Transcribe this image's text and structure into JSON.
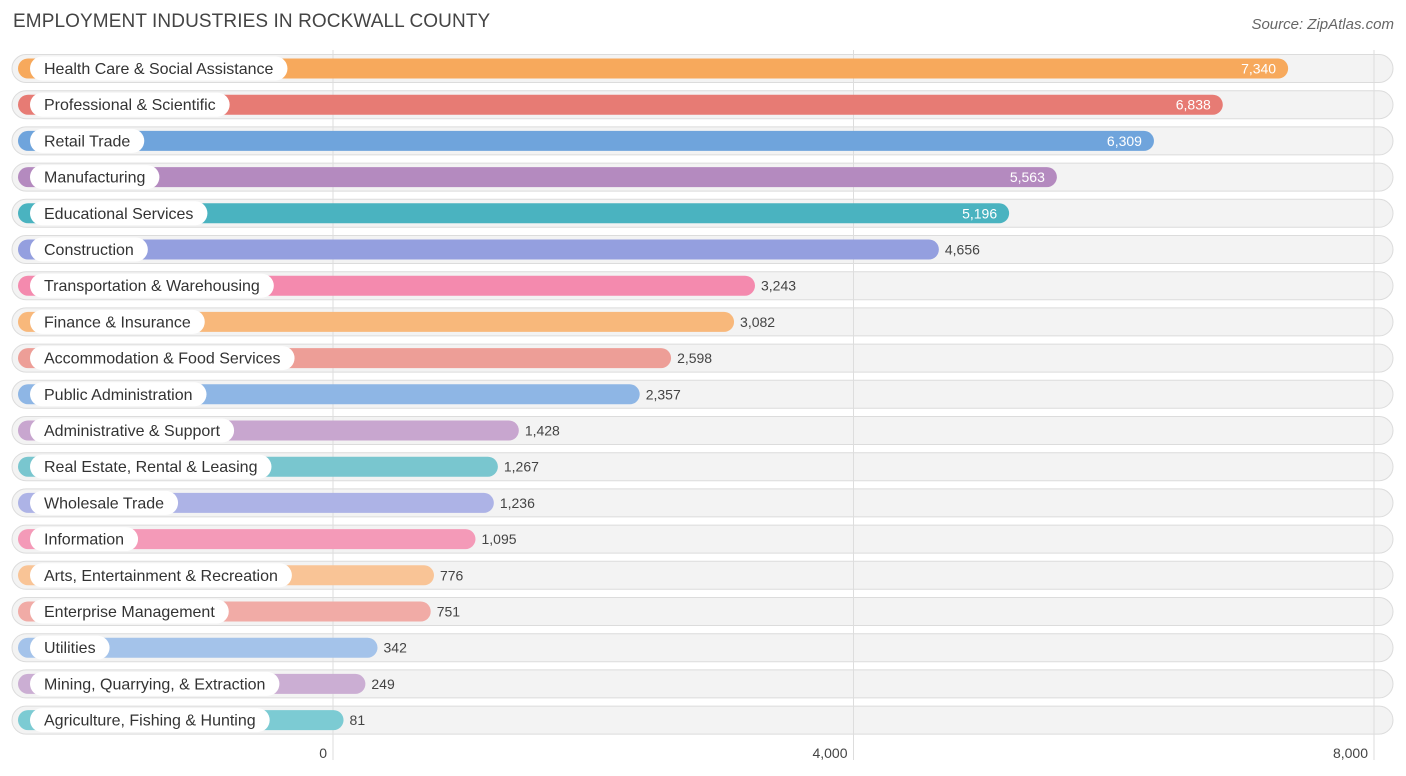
{
  "header": {
    "title": "EMPLOYMENT INDUSTRIES IN ROCKWALL COUNTY",
    "source": "Source: ZipAtlas.com"
  },
  "chart_data": {
    "type": "bar",
    "orientation": "horizontal",
    "title": "EMPLOYMENT INDUSTRIES IN ROCKWALL COUNTY",
    "xlim": [
      0,
      8000
    ],
    "xticks": [
      0,
      4000,
      8000
    ],
    "xtick_labels": [
      "0",
      "4,000",
      "8,000"
    ],
    "categories": [
      "Health Care & Social Assistance",
      "Professional & Scientific",
      "Retail Trade",
      "Manufacturing",
      "Educational Services",
      "Construction",
      "Transportation & Warehousing",
      "Finance & Insurance",
      "Accommodation & Food Services",
      "Public Administration",
      "Administrative & Support",
      "Real Estate, Rental & Leasing",
      "Wholesale Trade",
      "Information",
      "Arts, Entertainment & Recreation",
      "Enterprise Management",
      "Utilities",
      "Mining, Quarrying, & Extraction",
      "Agriculture, Fishing & Hunting"
    ],
    "values": [
      7340,
      6838,
      6309,
      5563,
      5196,
      4656,
      3243,
      3082,
      2598,
      2357,
      1428,
      1267,
      1236,
      1095,
      776,
      751,
      342,
      249,
      81
    ],
    "value_labels": [
      "7,340",
      "6,838",
      "6,309",
      "5,563",
      "5,196",
      "4,656",
      "3,243",
      "3,082",
      "2,598",
      "2,357",
      "1,428",
      "1,267",
      "1,236",
      "1,095",
      "776",
      "751",
      "342",
      "249",
      "81"
    ],
    "colors": [
      "#f7a95c",
      "#e77b74",
      "#6fa4dc",
      "#b48abf",
      "#4ab3c0",
      "#949fdf",
      "#f48aae",
      "#f8b87b",
      "#ed9e97",
      "#8eb6e5",
      "#c8a6cf",
      "#79c6cf",
      "#adb3e6",
      "#f49ab8",
      "#f9c496",
      "#f1aba6",
      "#a4c3ea",
      "#cbaed3",
      "#7ccbd3"
    ]
  }
}
